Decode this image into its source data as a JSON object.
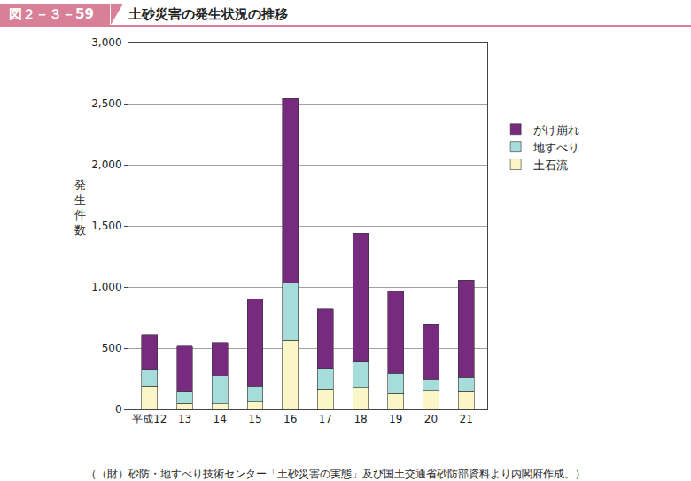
{
  "chart_data": {
    "type": "bar",
    "title": "土砂災害の発生状況の推移",
    "annotations": [
      "図２－３－59",
      "（（財）砂防・地すべり技術センター「土砂災害の実態」及び国土交通省砂防部資料より内閣府作成。）"
    ],
    "y_label": "発生件数",
    "categories": [
      "平成12",
      "13",
      "14",
      "15",
      "16",
      "17",
      "18",
      "19",
      "20",
      "21"
    ],
    "series": [
      {
        "name": "土石流",
        "color": "#fbf6c5",
        "values": [
          185,
          50,
          45,
          60,
          565,
          165,
          175,
          130,
          155,
          150
        ]
      },
      {
        "name": "地すべり",
        "color": "#a6dcd9",
        "values": [
          135,
          95,
          225,
          125,
          465,
          170,
          210,
          165,
          90,
          110
        ]
      },
      {
        "name": "がけ崩れ",
        "color": "#772b7e",
        "values": [
          290,
          370,
          275,
          715,
          1510,
          485,
          1055,
          675,
          450,
          795
        ]
      }
    ],
    "stacked": true,
    "ylim": [
      0,
      3000
    ],
    "yticks": [
      0,
      500,
      {
        "value": 1000,
        "label": "1,000"
      },
      {
        "value": 1500,
        "label": "1,500"
      },
      {
        "value": 2000,
        "label": "2,000"
      },
      {
        "value": 2500,
        "label": "2,500"
      },
      {
        "value": 3000,
        "label": "3,000"
      }
    ],
    "grid": true,
    "legend": "right"
  }
}
